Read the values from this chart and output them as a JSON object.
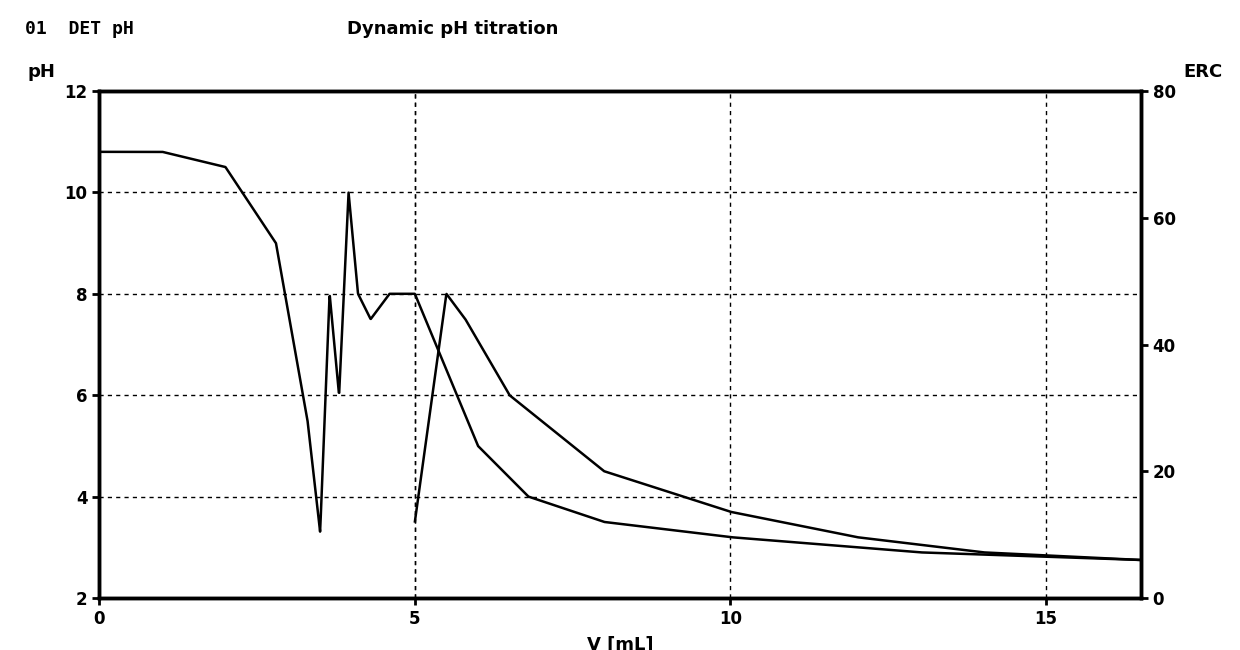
{
  "title_left": "01  DET pH",
  "title_right": "Dynamic pH titration",
  "xlabel": "V [mL]",
  "ylabel_left": "pH",
  "ylabel_right": "ERC",
  "xlim": [
    0,
    16.5
  ],
  "ylim_left": [
    2,
    12
  ],
  "ylim_right": [
    0,
    80
  ],
  "xticks": [
    0,
    5,
    10,
    15
  ],
  "yticks_left": [
    2,
    4,
    6,
    8,
    10,
    12
  ],
  "yticks_right": [
    0,
    20,
    40,
    60,
    80
  ],
  "line_color": "#000000",
  "background_color": "#ffffff",
  "title_fontsize": 13,
  "axis_label_fontsize": 13,
  "tick_fontsize": 12
}
